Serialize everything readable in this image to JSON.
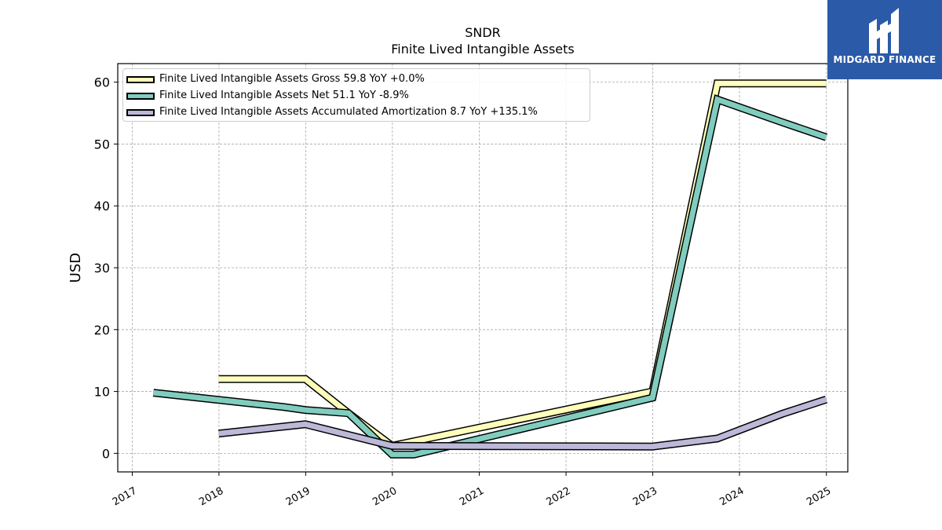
{
  "logo": {
    "text": "MIDGARD FINANCE",
    "icon": "midgard-logo-icon"
  },
  "chart_data": {
    "type": "line",
    "title": "SNDR",
    "subtitle": "Finite Lived Intangible Assets",
    "xlabel": "",
    "ylabel": "USD",
    "xlim": [
      "2016-11-01",
      "2025-04-01"
    ],
    "ylim": [
      -3,
      63
    ],
    "x_ticks": [
      "2017",
      "2018",
      "2019",
      "2020",
      "2021",
      "2022",
      "2023",
      "2024",
      "2025"
    ],
    "y_ticks": [
      0,
      10,
      20,
      30,
      40,
      50,
      60
    ],
    "grid": true,
    "legend_position": "top-left",
    "series": [
      {
        "name": "Finite Lived Intangible Assets Gross",
        "legend": "Finite Lived Intangible Assets Gross  59.8 YoY +0.0%",
        "color": "#ffffbb",
        "points": [
          [
            "2017-12-31",
            12.0
          ],
          [
            "2018-12-31",
            12.0
          ],
          [
            "2019-06-30",
            6.5
          ],
          [
            "2019-12-31",
            1.2
          ],
          [
            "2022-12-31",
            10.0
          ],
          [
            "2023-09-30",
            59.8
          ],
          [
            "2023-12-31",
            59.8
          ],
          [
            "2024-12-31",
            59.8
          ]
        ]
      },
      {
        "name": "Finite Lived Intangible Assets Net",
        "legend": "Finite Lived Intangible Assets Net  51.1 YoY -8.9%",
        "color": "#80cdbf",
        "points": [
          [
            "2017-03-31",
            9.8
          ],
          [
            "2018-09-30",
            7.5
          ],
          [
            "2018-12-31",
            7.0
          ],
          [
            "2019-06-30",
            6.5
          ],
          [
            "2019-12-31",
            -0.2
          ],
          [
            "2020-03-31",
            -0.2
          ],
          [
            "2022-12-31",
            9.0
          ],
          [
            "2023-09-30",
            57.2
          ],
          [
            "2024-06-30",
            53.5
          ],
          [
            "2024-12-31",
            51.1
          ]
        ]
      },
      {
        "name": "Finite Lived Intangible Assets Accumulated Amortization",
        "legend": "Finite Lived Intangible Assets Accumulated Amortization  8.7 YoY +135.1%",
        "color": "#bbb8d8",
        "points": [
          [
            "2017-12-31",
            3.2
          ],
          [
            "2018-12-31",
            4.7
          ],
          [
            "2019-12-31",
            1.2
          ],
          [
            "2022-12-31",
            1.1
          ],
          [
            "2023-09-30",
            2.4
          ],
          [
            "2024-06-30",
            6.4
          ],
          [
            "2024-12-31",
            8.7
          ]
        ]
      }
    ]
  }
}
